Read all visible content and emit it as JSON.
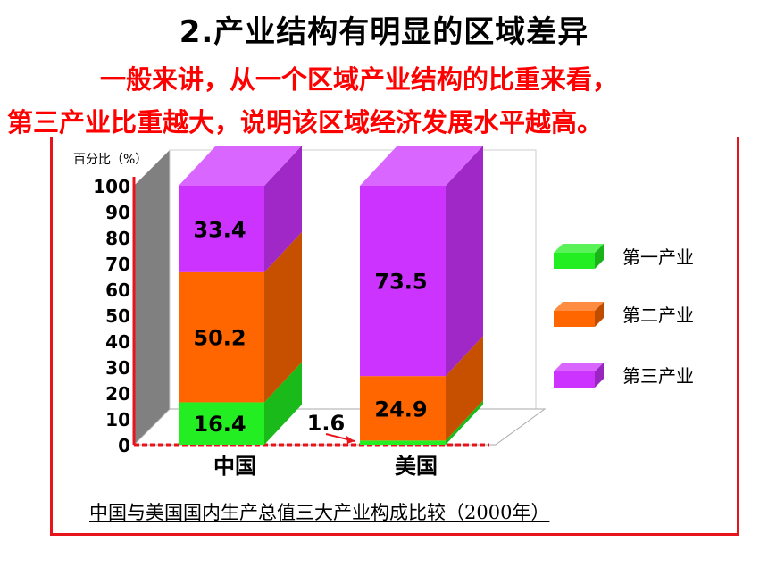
{
  "heading": {
    "title": "2.产业结构有明显的区域差异",
    "line1": "一般来讲，从一个区域产业结构的比重来看，",
    "line2": "第三产业比重越大，说明该区域经济发展水平越高。"
  },
  "chart_data": {
    "type": "bar",
    "stacked": true,
    "ylabel": "百分比（%）",
    "ylim": [
      0,
      100
    ],
    "yticks": [
      0,
      10,
      20,
      30,
      40,
      50,
      60,
      70,
      80,
      90,
      100
    ],
    "categories": [
      "中国",
      "美国"
    ],
    "series": [
      {
        "name": "第一产业",
        "values": [
          16.4,
          1.6
        ],
        "color": "#22ee22"
      },
      {
        "name": "第二产业",
        "values": [
          50.2,
          24.9
        ],
        "color": "#ff6600"
      },
      {
        "name": "第三产业",
        "values": [
          33.4,
          73.5
        ],
        "color": "#cc33ff"
      }
    ],
    "data_labels": [
      "16.4",
      "50.2",
      "33.4",
      "1.6",
      "24.9",
      "73.5"
    ],
    "legend_position": "right",
    "caption": "中国与美国国内生产总值三大产业构成比较（2000年）"
  }
}
